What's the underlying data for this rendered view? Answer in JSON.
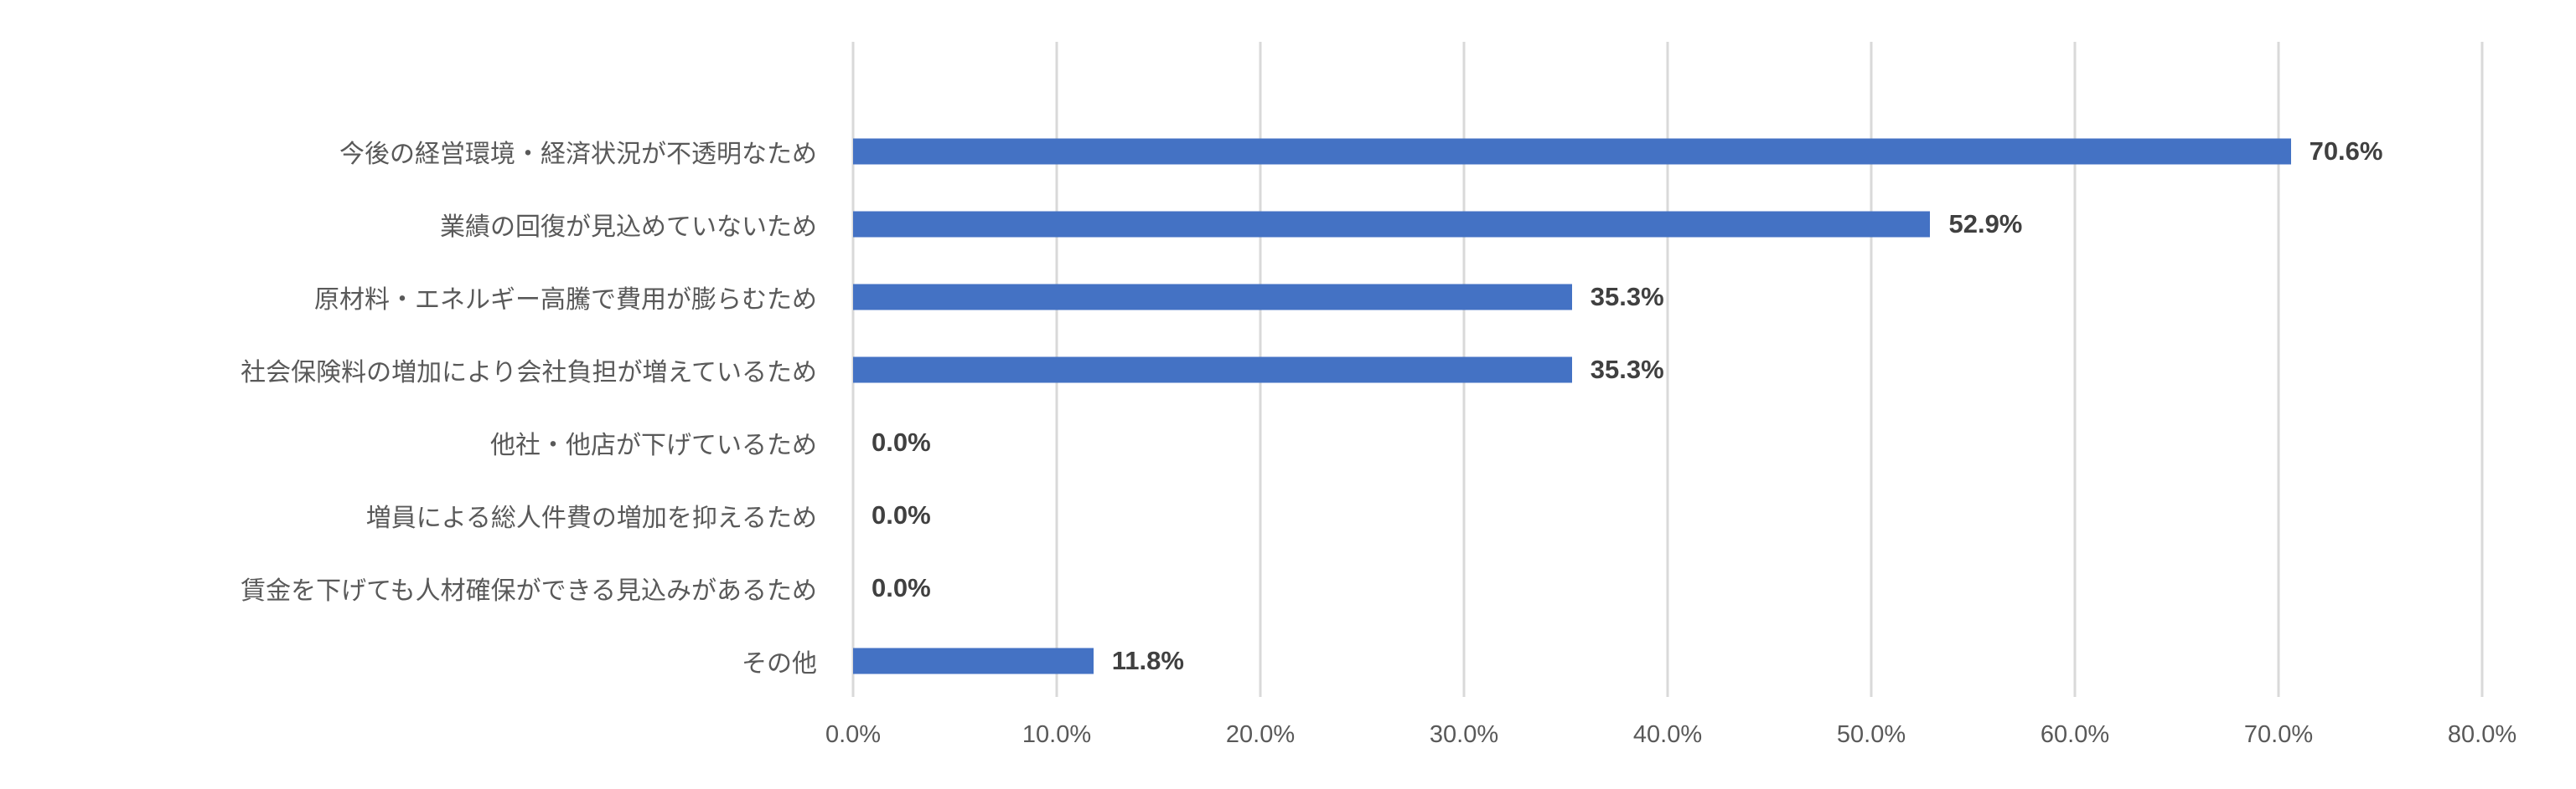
{
  "page": {
    "background_color": "#FFFFFF"
  },
  "chart_data": {
    "type": "bar",
    "orientation": "horizontal",
    "title": "",
    "xlabel": "",
    "ylabel": "",
    "categories": [
      "今後の経営環境・経済状況が不透明なため",
      "業績の回復が見込めていないため",
      "原材料・エネルギー高騰で費用が膨らむため",
      "社会保険料の増加により会社負担が増えているため",
      "他社・他店が下げているため",
      "増員による総人件費の増加を抑えるため",
      "賃金を下げても人材確保ができる見込みがあるため",
      "その他"
    ],
    "values": [
      70.6,
      52.9,
      35.3,
      35.3,
      0.0,
      0.0,
      0.0,
      11.8
    ],
    "value_labels": [
      "70.6%",
      "52.9%",
      "35.3%",
      "35.3%",
      "0.0%",
      "0.0%",
      "0.0%",
      "11.8%"
    ],
    "x_ticks": [
      "0.0%",
      "10.0%",
      "20.0%",
      "30.0%",
      "40.0%",
      "50.0%",
      "60.0%",
      "70.0%",
      "80.0%"
    ],
    "xlim": [
      0,
      80
    ],
    "grid": true,
    "legend": false,
    "leading_empty_rows": 1,
    "bar_color": "#4472C4",
    "gridline_color": "#D9D9D9",
    "category_label_color": "#595959",
    "tick_label_color": "#595959",
    "data_label_color": "#404040"
  }
}
